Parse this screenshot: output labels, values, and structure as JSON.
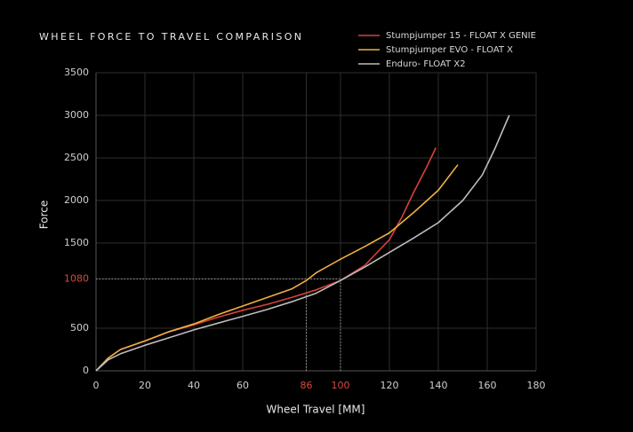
{
  "chart_data": {
    "type": "line",
    "title": "WHEEL FORCE TO TRAVEL COMPARISON",
    "x_label": "Wheel Travel [MM]",
    "y_label": "Force",
    "xlim": [
      0,
      180
    ],
    "ylim": [
      0,
      3500
    ],
    "xticks": [
      0,
      20,
      40,
      60,
      86,
      100,
      120,
      140,
      160,
      180
    ],
    "yticks": [
      0,
      500,
      1080,
      1500,
      2000,
      2500,
      3000,
      3500
    ],
    "grid": true,
    "legend": "top-right",
    "highlight_color": "#d84a3a",
    "reference_points": [
      {
        "x": 100,
        "y": 1080
      },
      {
        "x": 86,
        "y": 940
      }
    ],
    "series": [
      {
        "name": "Stumpjumper 15 - FLOAT X GENIE",
        "color": "#d8413a",
        "x": [
          0,
          5,
          10,
          20,
          30,
          40,
          50,
          60,
          70,
          80,
          90,
          100,
          110,
          120,
          125,
          130,
          135,
          139
        ],
        "values": [
          0,
          150,
          250,
          350,
          460,
          540,
          630,
          710,
          780,
          860,
          950,
          1060,
          1240,
          1540,
          1800,
          2100,
          2380,
          2620
        ]
      },
      {
        "name": "Stumpjumper EVO - FLOAT X",
        "color": "#f0b042",
        "x": [
          0,
          5,
          10,
          20,
          30,
          40,
          50,
          60,
          70,
          80,
          86,
          90,
          100,
          110,
          120,
          130,
          140,
          148
        ],
        "values": [
          0,
          150,
          250,
          350,
          460,
          550,
          660,
          760,
          860,
          960,
          1060,
          1150,
          1310,
          1460,
          1620,
          1860,
          2120,
          2420
        ]
      },
      {
        "name": "Enduro- FLOAT X2",
        "color": "#bdbdbd",
        "x": [
          0,
          5,
          10,
          20,
          30,
          40,
          50,
          60,
          70,
          80,
          90,
          100,
          110,
          120,
          130,
          140,
          150,
          158,
          163,
          169
        ],
        "values": [
          0,
          130,
          200,
          300,
          390,
          480,
          560,
          640,
          720,
          810,
          910,
          1060,
          1220,
          1390,
          1560,
          1740,
          2000,
          2300,
          2600,
          3000
        ]
      }
    ]
  }
}
